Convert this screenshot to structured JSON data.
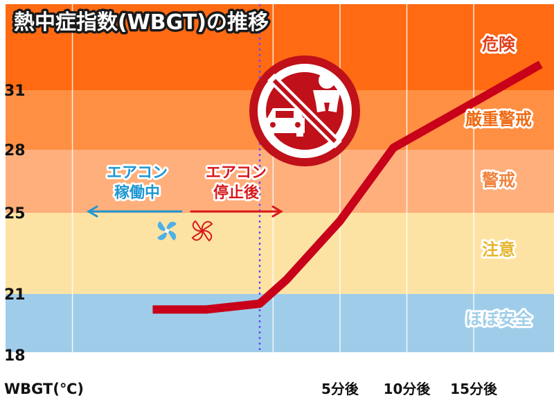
{
  "chart_data": {
    "type": "line",
    "title": "熱中症指数(WBGT)の推移",
    "xlabel": "WBGT(℃)",
    "ylabel": "",
    "x_tick_labels": [
      "5分後",
      "10分後",
      "15分後"
    ],
    "y_ticks": [
      18,
      21,
      25,
      28,
      31
    ],
    "ylim": [
      18,
      34
    ],
    "grid": true,
    "zones": [
      {
        "label": "ほぼ安全",
        "from": 18,
        "to": 21,
        "color": "#9fcde9",
        "label_color": "#9fcde9"
      },
      {
        "label": "注意",
        "from": 21,
        "to": 25,
        "color": "#fde3a3",
        "label_color": "#e6b52a"
      },
      {
        "label": "警戒",
        "from": 25,
        "to": 28,
        "color": "#ffaf7c",
        "label_color": "#f0823c"
      },
      {
        "label": "厳重警戒",
        "from": 28,
        "to": 31,
        "color": "#ff8f43",
        "label_color": "#ef6a12"
      },
      {
        "label": "危険",
        "from": 31,
        "to": 34,
        "color": "#ff6a13",
        "label_color": "#e0401a"
      }
    ],
    "series": [
      {
        "color": "#c8001a",
        "x_minutes": [
          -9,
          -5,
          -1,
          1,
          5,
          9,
          14,
          20
        ],
        "values": [
          20.2,
          20.2,
          20.5,
          21.7,
          24.6,
          28.1,
          30.0,
          31.9
        ]
      }
    ],
    "marker_x_minutes": -1,
    "annotations": {
      "before": {
        "line1": "エアコン",
        "line2": "稼働中",
        "color": "#1e96d2"
      },
      "after": {
        "line1": "エアコン",
        "line2": "停止後",
        "color": "#d7191c"
      }
    },
    "icon": {
      "name": "no-child-left-in-car-icon",
      "color": "#c0101a"
    }
  }
}
